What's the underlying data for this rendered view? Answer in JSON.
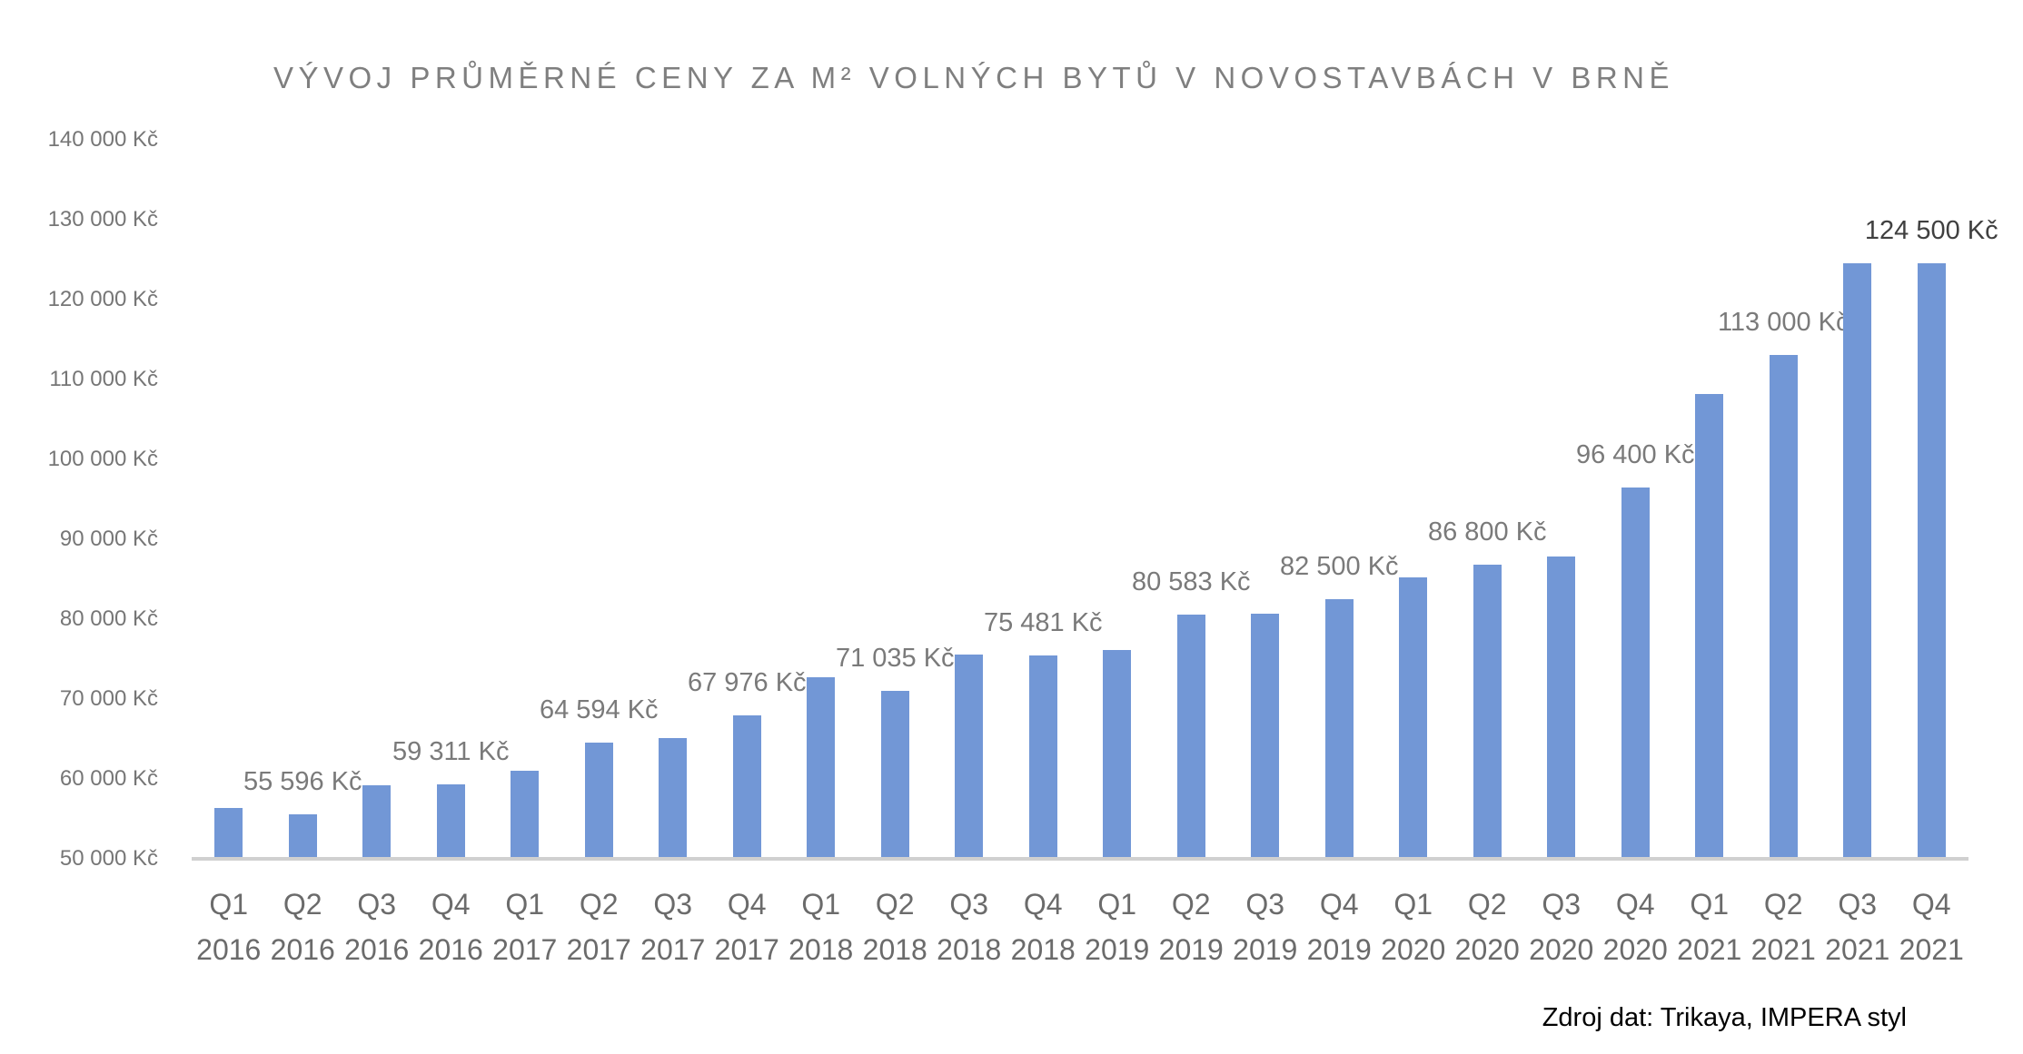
{
  "chart_data": {
    "type": "bar",
    "title": "VÝVOJ PRŮMĚRNÉ CENY ZA M² VOLNÝCH BYTŮ V NOVOSTAVBÁCH V BRNĚ",
    "categories": [
      "Q1 2016",
      "Q2 2016",
      "Q3 2016",
      "Q4 2016",
      "Q1 2017",
      "Q2 2017",
      "Q3 2017",
      "Q4 2017",
      "Q1 2018",
      "Q2 2018",
      "Q3 2018",
      "Q4 2018",
      "Q1 2019",
      "Q2 2019",
      "Q3 2019",
      "Q4 2019",
      "Q1 2020",
      "Q2 2020",
      "Q3 2020",
      "Q4 2020",
      "Q1 2021",
      "Q2 2021",
      "Q3 2021",
      "Q4 2021"
    ],
    "series": [
      {
        "values": [
          56400,
          55596,
          59200,
          59311,
          61000,
          64594,
          65100,
          67976,
          72700,
          71035,
          75600,
          75481,
          76100,
          80583,
          80700,
          82500,
          85200,
          86800,
          87800,
          96400,
          108200,
          113000,
          124500,
          124500
        ],
        "data_labels": [
          "",
          "55 596 Kč",
          "",
          "59 311 Kč",
          "",
          "64 594 Kč",
          "",
          "67 976 Kč",
          "",
          "71 035 Kč",
          "",
          "75 481 Kč",
          "",
          "80 583 Kč",
          "",
          "82 500 Kč",
          "",
          "86 800 Kč",
          "",
          "96 400 Kč",
          "",
          "113 000 Kč",
          "",
          "124 500 Kč"
        ],
        "color": "#7297d6"
      }
    ],
    "ylim": [
      50000,
      140000
    ],
    "yticks": [
      50000,
      60000,
      70000,
      80000,
      90000,
      100000,
      110000,
      120000,
      130000,
      140000
    ],
    "ytick_labels": [
      "50 000 Kč",
      "60 000 Kč",
      "70 000 Kč",
      "80 000 Kč",
      "90 000 Kč",
      "100 000 Kč",
      "110 000 Kč",
      "120 000 Kč",
      "130 000 Kč",
      "140 000 Kč"
    ],
    "grid": false,
    "legend": "none"
  },
  "source": "Zdroj dat: Trikaya, IMPERA styl",
  "colors": {
    "bar": "#7297d6",
    "axis_line": "#d0d0d0",
    "label_text": "#7a7a7a",
    "emphasis_label_text": "#404040",
    "title_text": "#7f7f7f",
    "source_text": "#000000"
  }
}
